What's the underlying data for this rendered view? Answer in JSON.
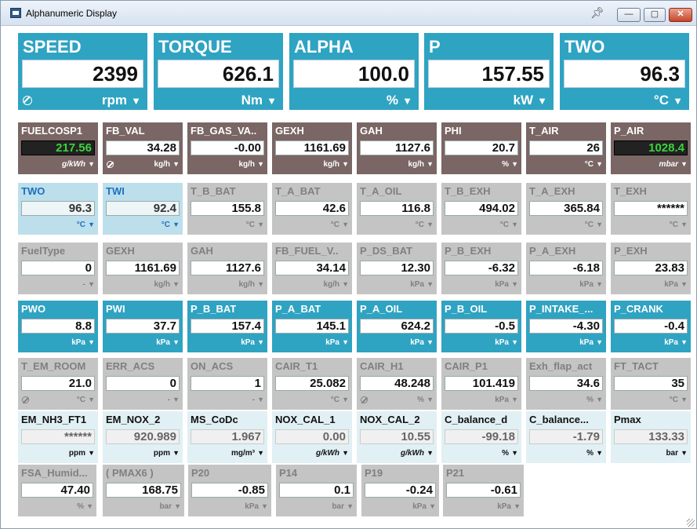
{
  "window": {
    "title": "Alphanumeric Display"
  },
  "big": [
    {
      "label": "SPEED",
      "value": "2399",
      "unit": "rpm",
      "nan": true
    },
    {
      "label": "TORQUE",
      "value": "626.1",
      "unit": "Nm",
      "nan": false
    },
    {
      "label": "ALPHA",
      "value": "100.0",
      "unit": "%",
      "nan": false
    },
    {
      "label": "P",
      "value": "157.55",
      "unit": "kW",
      "nan": false
    },
    {
      "label": "TWO",
      "value": "96.3",
      "unit": "°C",
      "nan": false
    }
  ],
  "rows": [
    [
      {
        "label": "FUELCOSP1",
        "value": "217.56",
        "unit": "g/kWh",
        "style": "brown",
        "lcd": true,
        "italic": true
      },
      {
        "label": "FB_VAL",
        "value": "34.28",
        "unit": "kg/h",
        "style": "brown",
        "nan": true
      },
      {
        "label": "FB_GAS_VA..",
        "value": "-0.00",
        "unit": "kg/h",
        "style": "brown"
      },
      {
        "label": "GEXH",
        "value": "1161.69",
        "unit": "kg/h",
        "style": "brown"
      },
      {
        "label": "GAH",
        "value": "1127.6",
        "unit": "kg/h",
        "style": "brown"
      },
      {
        "label": "PHI",
        "value": "20.7",
        "unit": "%",
        "style": "brown"
      },
      {
        "label": "T_AIR",
        "value": "26",
        "unit": "°C",
        "style": "brown"
      },
      {
        "label": "P_AIR",
        "value": "1028.4",
        "unit": "mbar",
        "style": "brown",
        "lcd": true,
        "italic": true
      }
    ],
    [
      {
        "label": "TWO",
        "value": "96.3",
        "unit": "°C",
        "style": "lblue"
      },
      {
        "label": "TWI",
        "value": "92.4",
        "unit": "°C",
        "style": "lblue"
      },
      {
        "label": "T_B_BAT",
        "value": "155.8",
        "unit": "°C",
        "style": "gray"
      },
      {
        "label": "T_A_BAT",
        "value": "42.6",
        "unit": "°C",
        "style": "gray"
      },
      {
        "label": "T_A_OIL",
        "value": "116.8",
        "unit": "°C",
        "style": "gray"
      },
      {
        "label": "T_B_EXH",
        "value": "494.02",
        "unit": "°C",
        "style": "gray"
      },
      {
        "label": "T_A_EXH",
        "value": "365.84",
        "unit": "°C",
        "style": "gray"
      },
      {
        "label": "T_EXH",
        "value": "******",
        "unit": "°C",
        "style": "gray"
      }
    ],
    [
      {
        "label": "FuelType",
        "value": "0",
        "unit": "-",
        "style": "gray"
      },
      {
        "label": "GEXH",
        "value": "1161.69",
        "unit": "kg/h",
        "style": "gray"
      },
      {
        "label": "GAH",
        "value": "1127.6",
        "unit": "kg/h",
        "style": "gray"
      },
      {
        "label": "FB_FUEL_V..",
        "value": "34.14",
        "unit": "kg/h",
        "style": "gray"
      },
      {
        "label": "P_DS_BAT",
        "value": "12.30",
        "unit": "kPa",
        "style": "gray"
      },
      {
        "label": "P_B_EXH",
        "value": "-6.32",
        "unit": "kPa",
        "style": "gray"
      },
      {
        "label": "P_A_EXH",
        "value": "-6.18",
        "unit": "kPa",
        "style": "gray"
      },
      {
        "label": "P_EXH",
        "value": "23.83",
        "unit": "kPa",
        "style": "gray"
      }
    ],
    [
      {
        "label": "PWO",
        "value": "8.8",
        "unit": "kPa",
        "style": "blue"
      },
      {
        "label": "PWI",
        "value": "37.7",
        "unit": "kPa",
        "style": "blue"
      },
      {
        "label": "P_B_BAT",
        "value": "157.4",
        "unit": "kPa",
        "style": "blue"
      },
      {
        "label": "P_A_BAT",
        "value": "145.1",
        "unit": "kPa",
        "style": "blue"
      },
      {
        "label": "P_A_OIL",
        "value": "624.2",
        "unit": "kPa",
        "style": "blue"
      },
      {
        "label": "P_B_OIL",
        "value": "-0.5",
        "unit": "kPa",
        "style": "blue"
      },
      {
        "label": "P_INTAKE_...",
        "value": "-4.30",
        "unit": "kPa",
        "style": "blue"
      },
      {
        "label": "P_CRANK",
        "value": "-0.4",
        "unit": "kPa",
        "style": "blue"
      }
    ],
    [
      {
        "label": "T_EM_ROOM",
        "value": "21.0",
        "unit": "°C",
        "style": "gray",
        "nan": true
      },
      {
        "label": "ERR_ACS",
        "value": "0",
        "unit": "-",
        "style": "gray"
      },
      {
        "label": "ON_ACS",
        "value": "1",
        "unit": "-",
        "style": "gray"
      },
      {
        "label": "CAIR_T1",
        "value": "25.082",
        "unit": "°C",
        "style": "gray"
      },
      {
        "label": "CAIR_H1",
        "value": "48.248",
        "unit": "%",
        "style": "gray",
        "nan": true
      },
      {
        "label": "CAIR_P1",
        "value": "101.419",
        "unit": "kPa",
        "style": "gray"
      },
      {
        "label": "Exh_flap_act",
        "value": "34.6",
        "unit": "%",
        "style": "gray"
      },
      {
        "label": "FT_TACT",
        "value": "35",
        "unit": "°C",
        "style": "gray"
      }
    ],
    [
      {
        "label": "EM_NH3_FT1",
        "value": "******",
        "unit": "ppm",
        "style": "pale"
      },
      {
        "label": "EM_NOX_2",
        "value": "920.989",
        "unit": "ppm",
        "style": "pale"
      },
      {
        "label": "MS_CoDc",
        "value": "1.967",
        "unit": "mg/m³",
        "style": "pale"
      },
      {
        "label": "NOX_CAL_1",
        "value": "0.00",
        "unit": "g/kWh",
        "style": "pale",
        "italic": true
      },
      {
        "label": "NOX_CAL_2",
        "value": "10.55",
        "unit": "g/kWh",
        "style": "pale",
        "italic": true
      },
      {
        "label": "C_balance_d",
        "value": "-99.18",
        "unit": "%",
        "style": "pale"
      },
      {
        "label": "C_balance...",
        "value": "-1.79",
        "unit": "%",
        "style": "pale"
      },
      {
        "label": "Pmax",
        "value": "133.33",
        "unit": "bar",
        "style": "pale"
      }
    ],
    [
      {
        "label": "FSA_Humid...",
        "value": "47.40",
        "unit": "%",
        "style": "gray"
      },
      {
        "label": "( PMAX6 )",
        "value": "168.75",
        "unit": "bar",
        "style": "gray"
      },
      {
        "label": "P20",
        "value": "-0.85",
        "unit": "kPa",
        "style": "gray"
      },
      {
        "label": "P14",
        "value": "0.1",
        "unit": "bar",
        "style": "gray"
      },
      {
        "label": "P19",
        "value": "-0.24",
        "unit": "kPa",
        "style": "gray"
      },
      {
        "label": "P21",
        "value": "-0.61",
        "unit": "kPa",
        "style": "gray"
      }
    ]
  ]
}
